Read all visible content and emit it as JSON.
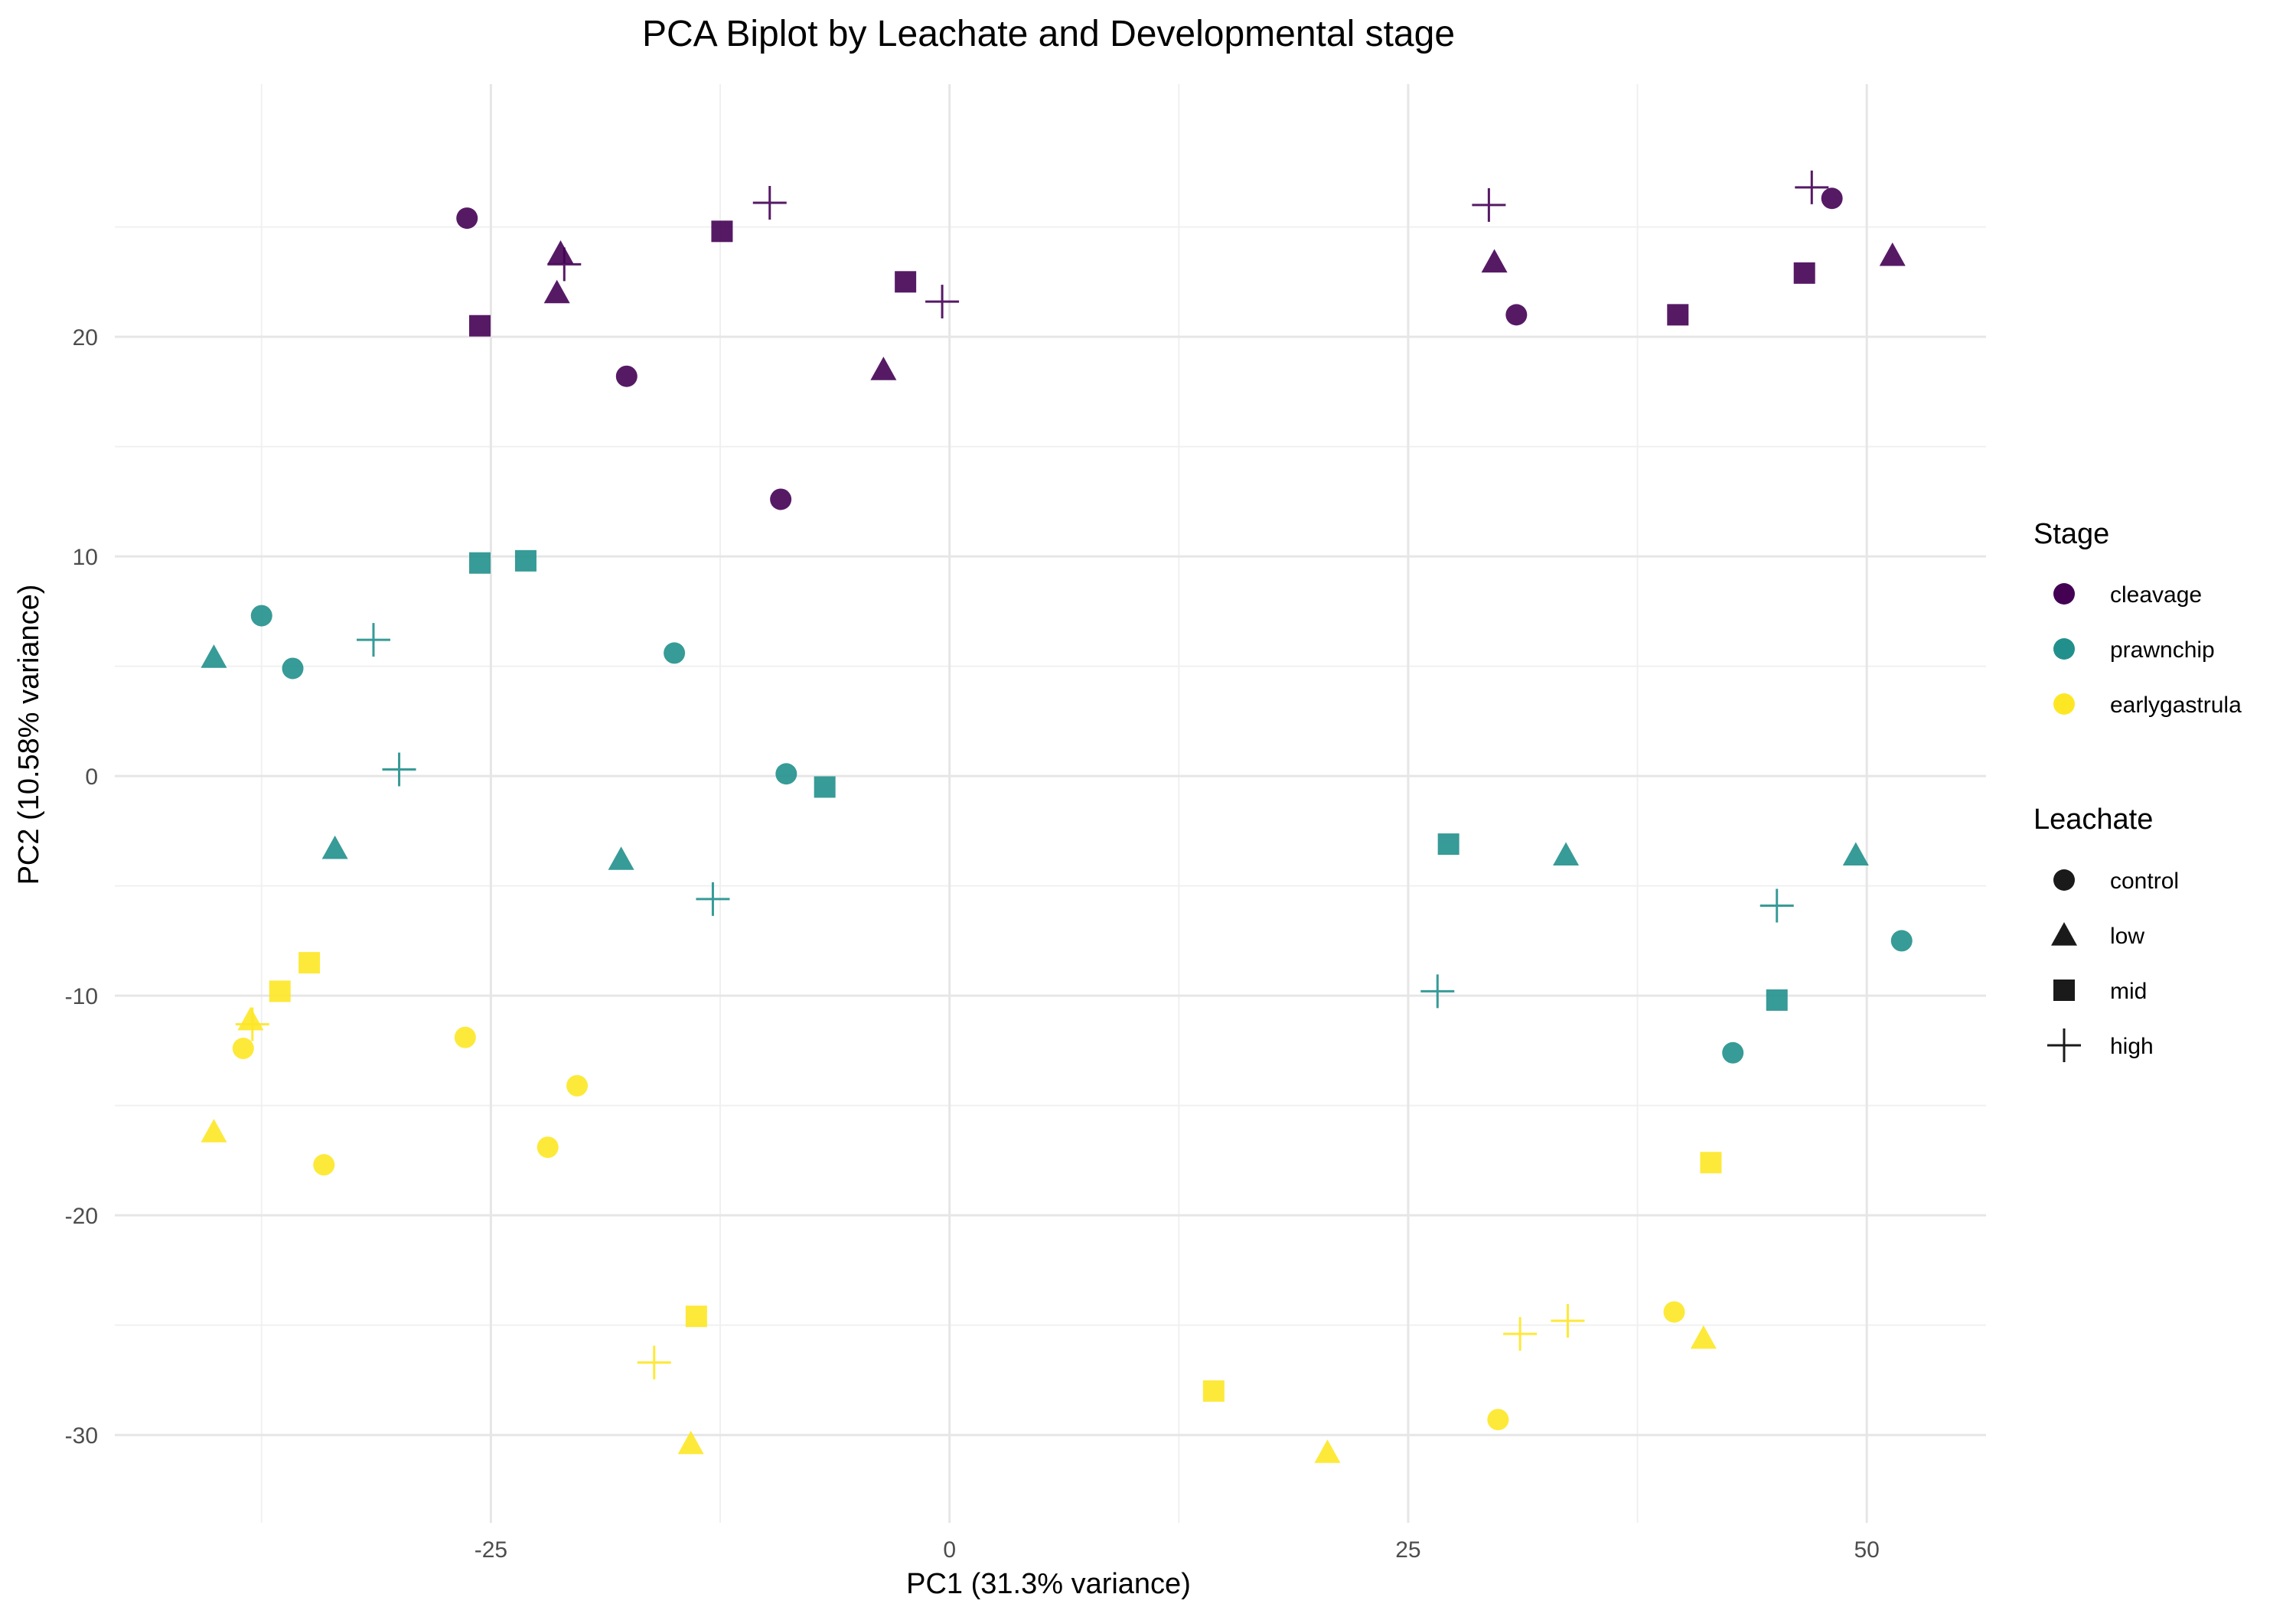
{
  "chart_data": {
    "type": "scatter",
    "title": "PCA Biplot by Leachate and Developmental stage",
    "xlabel": "PC1 (31.3% variance)",
    "ylabel": "PC2 (10.58% variance)",
    "xlim": [
      -45.5,
      56.5
    ],
    "ylim": [
      -34,
      31.5
    ],
    "xticks": [
      -25,
      0,
      25,
      50
    ],
    "xtick_labels": [
      "-25",
      "0",
      "25",
      "50"
    ],
    "yticks": [
      -30,
      -20,
      -10,
      0,
      10,
      20
    ],
    "ytick_labels": [
      "-30",
      "-20",
      "-10",
      "0",
      "10",
      "20"
    ],
    "grid": true,
    "legend_placement": "right",
    "stage_legend": {
      "title": "Stage",
      "items": [
        {
          "label": "cleavage",
          "color": "#440154"
        },
        {
          "label": "prawnchip",
          "color": "#21908C"
        },
        {
          "label": "earlygastrula",
          "color": "#FDE725"
        }
      ]
    },
    "leachate_legend": {
      "title": "Leachate",
      "items": [
        {
          "label": "control",
          "shape": "circle"
        },
        {
          "label": "low",
          "shape": "triangle"
        },
        {
          "label": "mid",
          "shape": "square"
        },
        {
          "label": "high",
          "shape": "plus"
        }
      ]
    },
    "series": [
      {
        "stage": "cleavage",
        "leachate": "control",
        "points": [
          [
            -26.3,
            25.4
          ],
          [
            -17.6,
            18.2
          ],
          [
            -9.2,
            12.6
          ],
          [
            30.9,
            21.0
          ],
          [
            48.1,
            26.3
          ]
        ]
      },
      {
        "stage": "cleavage",
        "leachate": "low",
        "points": [
          [
            -21.2,
            23.8
          ],
          [
            -21.4,
            22.0
          ],
          [
            -3.6,
            18.5
          ],
          [
            29.7,
            23.4
          ],
          [
            51.4,
            23.7
          ]
        ]
      },
      {
        "stage": "cleavage",
        "leachate": "mid",
        "points": [
          [
            -25.6,
            20.5
          ],
          [
            -12.4,
            24.8
          ],
          [
            -2.4,
            22.5
          ],
          [
            39.7,
            21.0
          ],
          [
            46.6,
            22.9
          ]
        ]
      },
      {
        "stage": "cleavage",
        "leachate": "high",
        "points": [
          [
            -21.0,
            23.3
          ],
          [
            -9.8,
            26.1
          ],
          [
            -0.4,
            21.6
          ],
          [
            29.4,
            26.0
          ],
          [
            47.0,
            26.8
          ]
        ]
      },
      {
        "stage": "prawnchip",
        "leachate": "control",
        "points": [
          [
            -37.5,
            7.3
          ],
          [
            -35.8,
            4.9
          ],
          [
            -15.0,
            5.6
          ],
          [
            -8.9,
            0.1
          ],
          [
            42.7,
            -12.6
          ],
          [
            51.9,
            -7.5
          ]
        ]
      },
      {
        "stage": "prawnchip",
        "leachate": "low",
        "points": [
          [
            -40.1,
            5.4
          ],
          [
            -33.5,
            -3.3
          ],
          [
            -17.9,
            -3.8
          ],
          [
            33.6,
            -3.6
          ],
          [
            49.4,
            -3.6
          ]
        ]
      },
      {
        "stage": "prawnchip",
        "leachate": "mid",
        "points": [
          [
            -25.6,
            9.7
          ],
          [
            -23.1,
            9.8
          ],
          [
            -6.8,
            -0.5
          ],
          [
            27.2,
            -3.1
          ],
          [
            45.1,
            -10.2
          ]
        ]
      },
      {
        "stage": "prawnchip",
        "leachate": "high",
        "points": [
          [
            -31.4,
            6.2
          ],
          [
            -30.0,
            0.3
          ],
          [
            -12.9,
            -5.6
          ],
          [
            26.6,
            -9.8
          ],
          [
            45.1,
            -5.9
          ]
        ]
      },
      {
        "stage": "earlygastrula",
        "leachate": "control",
        "points": [
          [
            -38.5,
            -12.4
          ],
          [
            -34.1,
            -17.7
          ],
          [
            -26.4,
            -11.9
          ],
          [
            -21.9,
            -16.9
          ],
          [
            -20.3,
            -14.1
          ],
          [
            29.9,
            -29.3
          ],
          [
            39.5,
            -24.4
          ]
        ]
      },
      {
        "stage": "earlygastrula",
        "leachate": "low",
        "points": [
          [
            -40.1,
            -16.2
          ],
          [
            -38.1,
            -11.1
          ],
          [
            -14.1,
            -30.4
          ],
          [
            20.6,
            -30.8
          ],
          [
            41.1,
            -25.6
          ]
        ]
      },
      {
        "stage": "earlygastrula",
        "leachate": "mid",
        "points": [
          [
            -36.5,
            -9.8
          ],
          [
            -34.9,
            -8.5
          ],
          [
            -13.8,
            -24.6
          ],
          [
            14.4,
            -28.0
          ],
          [
            41.5,
            -17.6
          ]
        ]
      },
      {
        "stage": "earlygastrula",
        "leachate": "high",
        "points": [
          [
            -38.0,
            -11.3
          ],
          [
            -16.1,
            -26.7
          ],
          [
            31.1,
            -25.4
          ],
          [
            33.7,
            -24.8
          ]
        ]
      }
    ]
  }
}
